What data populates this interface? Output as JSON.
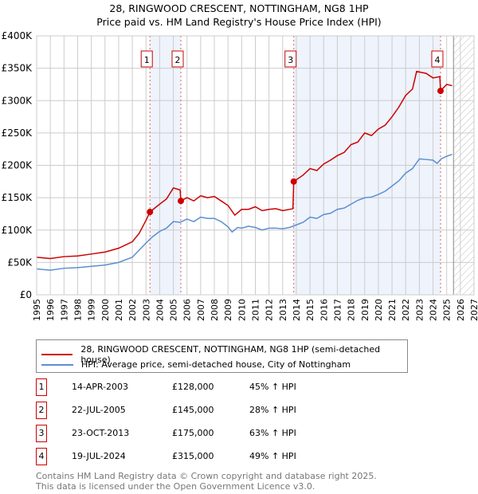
{
  "title": "28, RINGWOOD CRESCENT, NOTTINGHAM, NG8 1HP",
  "subtitle": "Price paid vs. HM Land Registry's House Price Index (HPI)",
  "chart_data": {
    "type": "line",
    "title": "28, RINGWOOD CRESCENT, NOTTINGHAM, NG8 1HP",
    "subtitle": "Price paid vs. HM Land Registry's House Price Index (HPI)",
    "xlim": [
      1995,
      2027
    ],
    "ylim": [
      0,
      400000
    ],
    "x_ticks": [
      1995,
      1996,
      1997,
      1998,
      1999,
      2000,
      2001,
      2002,
      2003,
      2004,
      2005,
      2006,
      2007,
      2008,
      2009,
      2010,
      2011,
      2012,
      2013,
      2014,
      2015,
      2016,
      2017,
      2018,
      2019,
      2020,
      2021,
      2022,
      2023,
      2024,
      2025,
      2026,
      2027
    ],
    "y_ticks": [
      {
        "v": 0,
        "label": "£0"
      },
      {
        "v": 50000,
        "label": "£50K"
      },
      {
        "v": 100000,
        "label": "£100K"
      },
      {
        "v": 150000,
        "label": "£150K"
      },
      {
        "v": 200000,
        "label": "£200K"
      },
      {
        "v": 250000,
        "label": "£250K"
      },
      {
        "v": 300000,
        "label": "£300K"
      },
      {
        "v": 350000,
        "label": "£350K"
      },
      {
        "v": 400000,
        "label": "£400K"
      }
    ],
    "grid": true,
    "colors": {
      "property": "#cc0000",
      "hpi": "#5b8fd0",
      "shade": "#eef3fc",
      "vline": "#e06060"
    },
    "shaded_ranges": [
      [
        2003.29,
        2005.55
      ],
      [
        2013.81,
        2024.55
      ]
    ],
    "future_from": 2025.5,
    "series": [
      {
        "name": "28, RINGWOOD CRESCENT, NOTTINGHAM, NG8 1HP (semi-detached house)",
        "color": "#cc0000",
        "x": [
          1995,
          1996,
          1997,
          1998,
          1999,
          2000,
          2001,
          2002,
          2002.5,
          2003,
          2003.29,
          2004,
          2004.5,
          2005,
          2005.5,
          2005.55,
          2006,
          2006.5,
          2007,
          2007.5,
          2008,
          2008.5,
          2009,
          2009.5,
          2010,
          2010.5,
          2011,
          2011.5,
          2012,
          2012.5,
          2013,
          2013.75,
          2013.81,
          2014.5,
          2015,
          2015.5,
          2016,
          2016.5,
          2017,
          2017.5,
          2018,
          2018.5,
          2019,
          2019.5,
          2020,
          2020.5,
          2021,
          2021.5,
          2022,
          2022.5,
          2022.8,
          2023.5,
          2024,
          2024.5,
          2024.55,
          2025,
          2025.4
        ],
        "y": [
          58000,
          56000,
          59000,
          60000,
          63000,
          66000,
          72000,
          82000,
          95000,
          115000,
          128000,
          140000,
          148000,
          165000,
          162000,
          145000,
          150000,
          145000,
          153000,
          150000,
          152000,
          145000,
          138000,
          123000,
          132000,
          132000,
          136000,
          130000,
          132000,
          133000,
          130000,
          133000,
          175000,
          185000,
          195000,
          192000,
          202000,
          208000,
          215000,
          220000,
          232000,
          236000,
          250000,
          246000,
          256000,
          262000,
          275000,
          290000,
          308000,
          318000,
          345000,
          342000,
          335000,
          337000,
          315000,
          325000,
          323000
        ]
      },
      {
        "name": "HPI: Average price, semi-detached house, City of Nottingham",
        "color": "#5b8fd0",
        "x": [
          1995,
          1996,
          1997,
          1998,
          1999,
          2000,
          2001,
          2002,
          2003,
          2003.5,
          2004,
          2004.5,
          2005,
          2005.5,
          2006,
          2006.5,
          2007,
          2007.5,
          2008,
          2008.5,
          2009,
          2009.3,
          2009.7,
          2010,
          2010.5,
          2011,
          2011.5,
          2012,
          2012.5,
          2013,
          2013.5,
          2014,
          2014.5,
          2015,
          2015.5,
          2016,
          2016.5,
          2017,
          2017.5,
          2018,
          2018.5,
          2019,
          2019.5,
          2020,
          2020.5,
          2021,
          2021.5,
          2022,
          2022.5,
          2023,
          2023.5,
          2024,
          2024.3,
          2024.6,
          2025,
          2025.4
        ],
        "y": [
          40000,
          38000,
          41000,
          42000,
          44000,
          46000,
          50000,
          58000,
          80000,
          90000,
          98000,
          103000,
          113000,
          112000,
          117000,
          113000,
          120000,
          118000,
          118000,
          113000,
          105000,
          97000,
          104000,
          103000,
          106000,
          104000,
          100000,
          103000,
          103000,
          102000,
          104000,
          108000,
          112000,
          120000,
          118000,
          124000,
          126000,
          132000,
          134000,
          140000,
          146000,
          150000,
          151000,
          155000,
          160000,
          168000,
          176000,
          188000,
          195000,
          210000,
          209000,
          208000,
          203000,
          210000,
          214000,
          217000
        ]
      }
    ],
    "sales": [
      {
        "n": "1",
        "x": 2003.29,
        "price": 128000,
        "date": "14-APR-2003",
        "price_label": "£128,000",
        "hpi": "45% ↑ HPI"
      },
      {
        "n": "2",
        "x": 2005.55,
        "price": 145000,
        "date": "22-JUL-2005",
        "price_label": "£145,000",
        "hpi": "28% ↑ HPI"
      },
      {
        "n": "3",
        "x": 2013.81,
        "price": 175000,
        "date": "23-OCT-2013",
        "price_label": "£175,000",
        "hpi": "63% ↑ HPI"
      },
      {
        "n": "4",
        "x": 2024.55,
        "price": 315000,
        "date": "19-JUL-2024",
        "price_label": "£315,000",
        "hpi": "49% ↑ HPI"
      }
    ]
  },
  "legend": {
    "property": "28, RINGWOOD CRESCENT, NOTTINGHAM, NG8 1HP (semi-detached house)",
    "hpi": "HPI: Average price, semi-detached house, City of Nottingham"
  },
  "footer": {
    "line1": "Contains HM Land Registry data © Crown copyright and database right 2025.",
    "line2": "This data is licensed under the Open Government Licence v3.0."
  }
}
